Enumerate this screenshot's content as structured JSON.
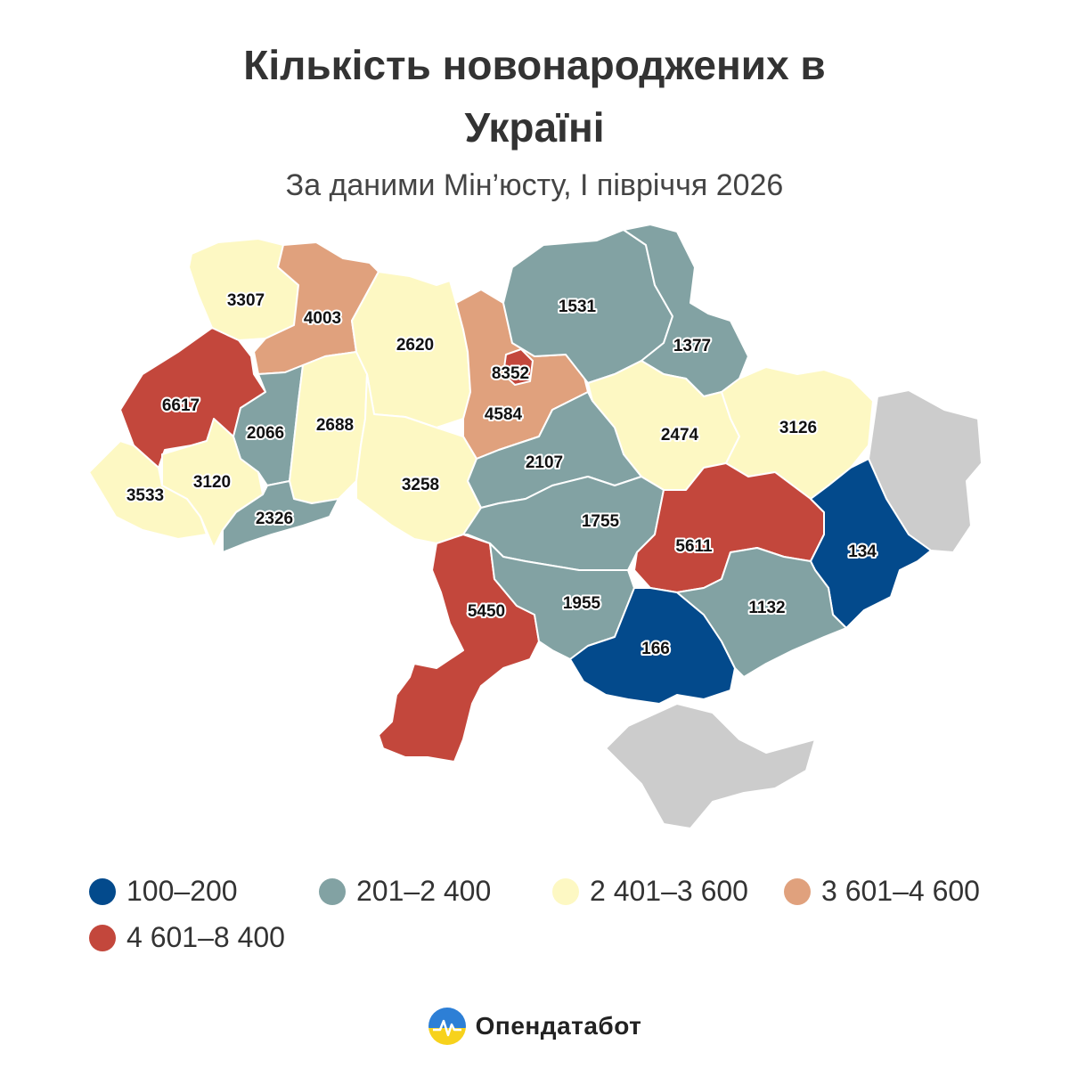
{
  "header": {
    "title_line1": "Кількість новонароджених в",
    "title_line2": "Україні",
    "subtitle": "За даними Мін’юсту, І півріччя 2026"
  },
  "colors": {
    "bin1": "#034a8c",
    "bin2": "#82a2a3",
    "bin3": "#fdf8c3",
    "bin4": "#e0a17d",
    "bin5": "#c3473c",
    "no_data": "#cccccc"
  },
  "legend": [
    {
      "label": "100–200",
      "color": "#034a8c"
    },
    {
      "label": "201–2 400",
      "color": "#82a2a3"
    },
    {
      "label": "2 401–3 600",
      "color": "#fdf8c3"
    },
    {
      "label": "3 601–4 600",
      "color": "#e0a17d"
    },
    {
      "label": "4 601–8 400",
      "color": "#c3473c"
    }
  ],
  "map_values": {
    "volyn": "3307",
    "rivne": "4003",
    "lviv": "6617",
    "ternopil": "2066",
    "khmelnytskyi": "2688",
    "zhytomyr": "2620",
    "kyiv_oblast": "4584",
    "kyiv_city": "8352",
    "chernihiv": "1531",
    "sumy": "1377",
    "poltava": "2474",
    "kharkiv": "3126",
    "zakarpattia": "3533",
    "ivano_frankivsk": "3120",
    "chernivtsi": "2326",
    "vinnytsia": "3258",
    "cherkasy": "2107",
    "kirovohrad": "1755",
    "dnipropetrovsk": "5611",
    "donetsk": "134",
    "odesa": "5450",
    "mykolaiv": "1955",
    "kherson": "166",
    "zaporizhzhia": "1132"
  },
  "brand": {
    "name": "Опендатабот"
  }
}
